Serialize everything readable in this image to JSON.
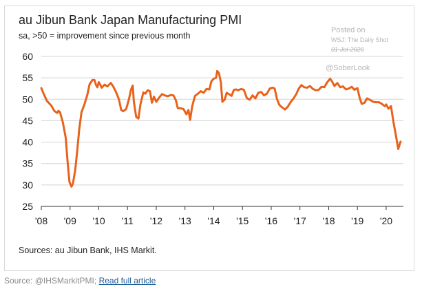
{
  "chart_data": {
    "type": "line",
    "title": "au Jibun Bank Japan Manufacturing PMI",
    "subtitle": "sa, >50 = improvement since previous month",
    "ylim": [
      25,
      60
    ],
    "yticks": [
      25,
      30,
      35,
      40,
      45,
      50,
      55,
      60
    ],
    "xlim": [
      2008.0,
      2020.6
    ],
    "xticks": [
      {
        "value": 2008,
        "label": "'08"
      },
      {
        "value": 2009,
        "label": "'09"
      },
      {
        "value": 2010,
        "label": "'10"
      },
      {
        "value": 2011,
        "label": "'11"
      },
      {
        "value": 2012,
        "label": "'12"
      },
      {
        "value": 2013,
        "label": "'13"
      },
      {
        "value": 2014,
        "label": "'14"
      },
      {
        "value": 2015,
        "label": "'15"
      },
      {
        "value": 2016,
        "label": "'16"
      },
      {
        "value": 2017,
        "label": "'17"
      },
      {
        "value": 2018,
        "label": "'18"
      },
      {
        "value": 2019,
        "label": "'19"
      },
      {
        "value": 2020,
        "label": "'20"
      }
    ],
    "grid": true,
    "line_color": "#e8621a",
    "series": [
      {
        "name": "",
        "points": [
          [
            2008.0,
            52.6
          ],
          [
            2008.1,
            51.0
          ],
          [
            2008.2,
            49.6
          ],
          [
            2008.35,
            48.5
          ],
          [
            2008.45,
            47.3
          ],
          [
            2008.55,
            46.8
          ],
          [
            2008.6,
            47.3
          ],
          [
            2008.65,
            47.0
          ],
          [
            2008.75,
            44.6
          ],
          [
            2008.85,
            41.0
          ],
          [
            2008.92,
            35.0
          ],
          [
            2008.98,
            30.7
          ],
          [
            2009.05,
            29.6
          ],
          [
            2009.1,
            30.3
          ],
          [
            2009.18,
            33.5
          ],
          [
            2009.25,
            38.0
          ],
          [
            2009.32,
            43.0
          ],
          [
            2009.4,
            47.0
          ],
          [
            2009.5,
            48.8
          ],
          [
            2009.6,
            51.0
          ],
          [
            2009.68,
            53.5
          ],
          [
            2009.78,
            54.5
          ],
          [
            2009.85,
            54.5
          ],
          [
            2009.9,
            53.4
          ],
          [
            2009.95,
            52.8
          ],
          [
            2010.0,
            54.0
          ],
          [
            2010.05,
            53.4
          ],
          [
            2010.1,
            52.7
          ],
          [
            2010.2,
            53.4
          ],
          [
            2010.3,
            53.0
          ],
          [
            2010.42,
            53.8
          ],
          [
            2010.5,
            53.0
          ],
          [
            2010.6,
            51.7
          ],
          [
            2010.7,
            50.0
          ],
          [
            2010.78,
            47.5
          ],
          [
            2010.85,
            47.2
          ],
          [
            2010.95,
            47.7
          ],
          [
            2011.05,
            50.0
          ],
          [
            2011.12,
            52.2
          ],
          [
            2011.18,
            53.2
          ],
          [
            2011.22,
            49.5
          ],
          [
            2011.3,
            45.9
          ],
          [
            2011.38,
            45.5
          ],
          [
            2011.45,
            48.8
          ],
          [
            2011.55,
            51.6
          ],
          [
            2011.62,
            51.3
          ],
          [
            2011.7,
            52.1
          ],
          [
            2011.78,
            51.9
          ],
          [
            2011.85,
            49.2
          ],
          [
            2011.92,
            50.6
          ],
          [
            2012.0,
            49.4
          ],
          [
            2012.1,
            50.4
          ],
          [
            2012.2,
            51.2
          ],
          [
            2012.3,
            50.9
          ],
          [
            2012.4,
            50.7
          ],
          [
            2012.5,
            51.0
          ],
          [
            2012.6,
            50.9
          ],
          [
            2012.68,
            49.8
          ],
          [
            2012.75,
            47.9
          ],
          [
            2012.85,
            47.9
          ],
          [
            2012.95,
            47.7
          ],
          [
            2013.05,
            46.5
          ],
          [
            2013.12,
            47.5
          ],
          [
            2013.18,
            45.2
          ],
          [
            2013.25,
            48.4
          ],
          [
            2013.35,
            50.8
          ],
          [
            2013.45,
            51.3
          ],
          [
            2013.55,
            51.9
          ],
          [
            2013.65,
            51.5
          ],
          [
            2013.75,
            52.4
          ],
          [
            2013.85,
            52.3
          ],
          [
            2013.92,
            54.2
          ],
          [
            2014.0,
            54.8
          ],
          [
            2014.08,
            55.0
          ],
          [
            2014.12,
            56.6
          ],
          [
            2014.18,
            56.1
          ],
          [
            2014.25,
            53.9
          ],
          [
            2014.3,
            49.4
          ],
          [
            2014.38,
            49.9
          ],
          [
            2014.45,
            51.5
          ],
          [
            2014.55,
            51.1
          ],
          [
            2014.62,
            50.8
          ],
          [
            2014.7,
            52.2
          ],
          [
            2014.78,
            52.3
          ],
          [
            2014.85,
            52.1
          ],
          [
            2014.95,
            52.4
          ],
          [
            2015.05,
            52.2
          ],
          [
            2015.15,
            50.3
          ],
          [
            2015.25,
            49.9
          ],
          [
            2015.35,
            50.9
          ],
          [
            2015.45,
            50.2
          ],
          [
            2015.55,
            51.5
          ],
          [
            2015.65,
            51.7
          ],
          [
            2015.75,
            50.9
          ],
          [
            2015.85,
            51.3
          ],
          [
            2015.95,
            52.5
          ],
          [
            2016.05,
            52.7
          ],
          [
            2016.12,
            52.5
          ],
          [
            2016.2,
            50.1
          ],
          [
            2016.28,
            48.7
          ],
          [
            2016.38,
            48.1
          ],
          [
            2016.48,
            47.6
          ],
          [
            2016.58,
            48.3
          ],
          [
            2016.68,
            49.4
          ],
          [
            2016.78,
            50.2
          ],
          [
            2016.88,
            51.3
          ],
          [
            2016.95,
            52.4
          ],
          [
            2017.05,
            53.3
          ],
          [
            2017.15,
            52.8
          ],
          [
            2017.25,
            52.7
          ],
          [
            2017.35,
            53.1
          ],
          [
            2017.45,
            52.4
          ],
          [
            2017.55,
            52.1
          ],
          [
            2017.65,
            52.2
          ],
          [
            2017.75,
            52.9
          ],
          [
            2017.85,
            52.8
          ],
          [
            2017.95,
            54.0
          ],
          [
            2018.05,
            54.8
          ],
          [
            2018.12,
            54.1
          ],
          [
            2018.2,
            53.1
          ],
          [
            2018.3,
            53.8
          ],
          [
            2018.4,
            52.8
          ],
          [
            2018.5,
            53.0
          ],
          [
            2018.6,
            52.3
          ],
          [
            2018.7,
            52.5
          ],
          [
            2018.8,
            52.9
          ],
          [
            2018.9,
            52.2
          ],
          [
            2019.0,
            52.6
          ],
          [
            2019.08,
            50.3
          ],
          [
            2019.15,
            48.9
          ],
          [
            2019.25,
            49.2
          ],
          [
            2019.33,
            50.2
          ],
          [
            2019.45,
            49.8
          ],
          [
            2019.55,
            49.4
          ],
          [
            2019.65,
            49.3
          ],
          [
            2019.75,
            49.3
          ],
          [
            2019.85,
            48.9
          ],
          [
            2019.95,
            48.4
          ],
          [
            2020.0,
            48.8
          ],
          [
            2020.08,
            47.8
          ],
          [
            2020.17,
            48.4
          ],
          [
            2020.25,
            44.8
          ],
          [
            2020.33,
            41.9
          ],
          [
            2020.42,
            38.4
          ],
          [
            2020.5,
            40.1
          ]
        ]
      }
    ]
  },
  "watermark": {
    "posted": "Posted on",
    "source": "WSJ: The Daily Shot",
    "date": "01-Jul-2020",
    "handle": "@SoberLook"
  },
  "sources_note": "Sources: au Jibun Bank, IHS Markit.",
  "caption": {
    "prefix": "Source: @IHSMarkitPMI;",
    "link_text": "Read full article"
  }
}
